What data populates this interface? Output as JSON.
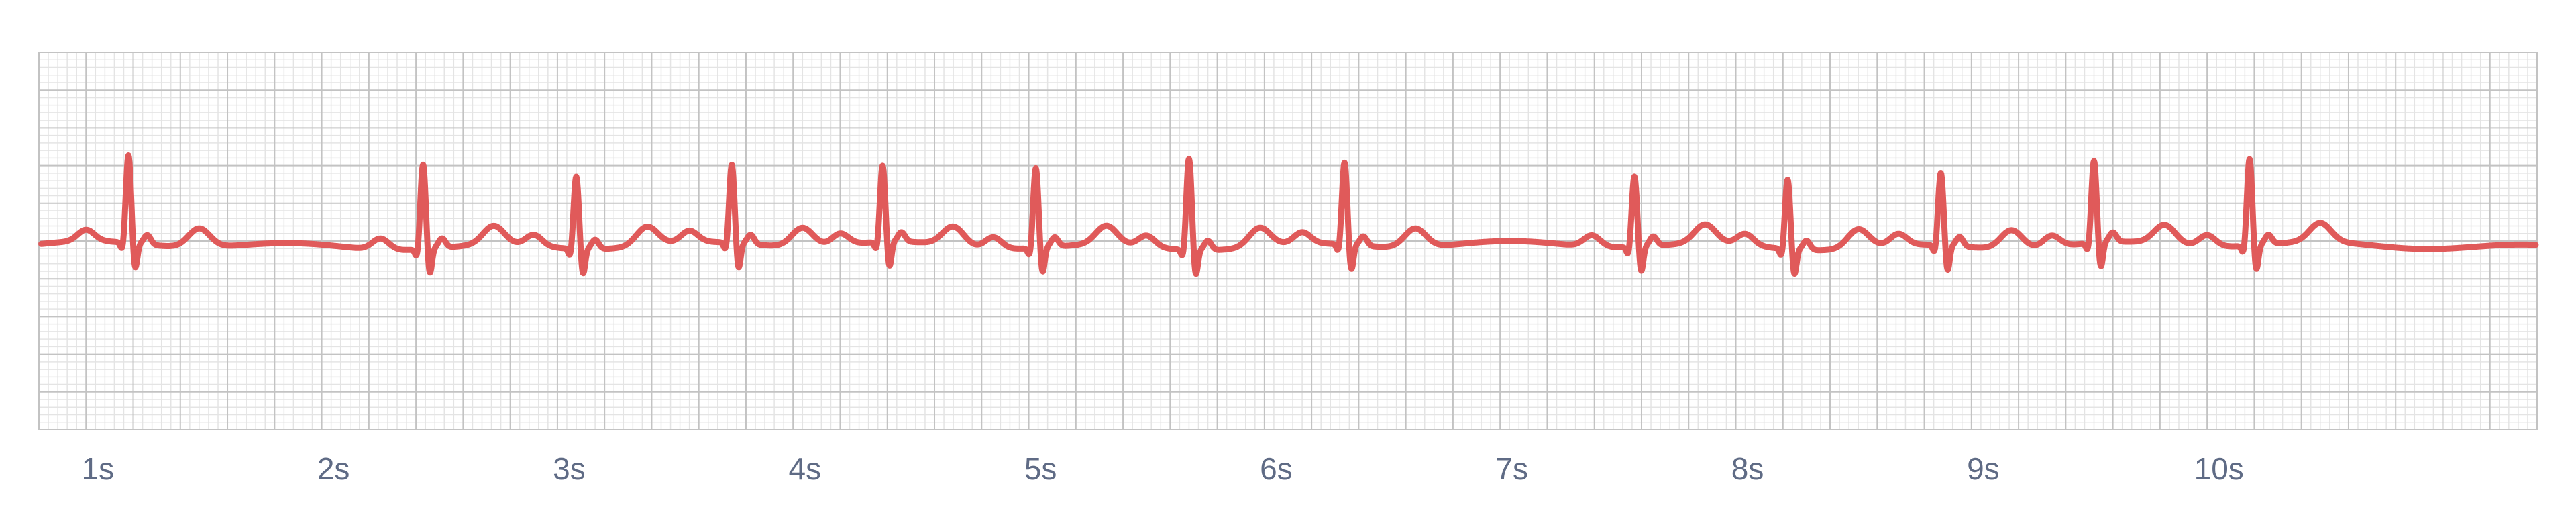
{
  "chart_data": {
    "type": "line",
    "title": "",
    "xlabel": "",
    "ylabel": "",
    "xlim": [
      0.0,
      10.6
    ],
    "ylim": [
      -2.0,
      2.0
    ],
    "grid": true,
    "x_ticks": [
      {
        "value": 0.25,
        "label": "1s"
      },
      {
        "value": 1.25,
        "label": "2s"
      },
      {
        "value": 2.25,
        "label": "3s"
      },
      {
        "value": 3.25,
        "label": "4s"
      },
      {
        "value": 4.25,
        "label": "5s"
      },
      {
        "value": 5.25,
        "label": "6s"
      },
      {
        "value": 6.25,
        "label": "7s"
      },
      {
        "value": 7.25,
        "label": "8s"
      },
      {
        "value": 8.25,
        "label": "9s"
      },
      {
        "value": 9.25,
        "label": "10s"
      }
    ],
    "series": [
      {
        "color": "#e05a5a",
        "baseline": -0.05,
        "beats": [
          {
            "t": 0.38,
            "r": 0.88
          },
          {
            "t": 1.63,
            "r": 0.85
          },
          {
            "t": 2.28,
            "r": 0.72
          },
          {
            "t": 2.94,
            "r": 0.78
          },
          {
            "t": 3.58,
            "r": 0.76
          },
          {
            "t": 4.23,
            "r": 0.8
          },
          {
            "t": 4.88,
            "r": 0.92
          },
          {
            "t": 5.54,
            "r": 0.82
          },
          {
            "t": 6.77,
            "r": 0.7
          },
          {
            "t": 7.42,
            "r": 0.69
          },
          {
            "t": 8.07,
            "r": 0.72
          },
          {
            "t": 8.72,
            "r": 0.82
          },
          {
            "t": 9.38,
            "r": 0.87
          }
        ]
      }
    ]
  }
}
